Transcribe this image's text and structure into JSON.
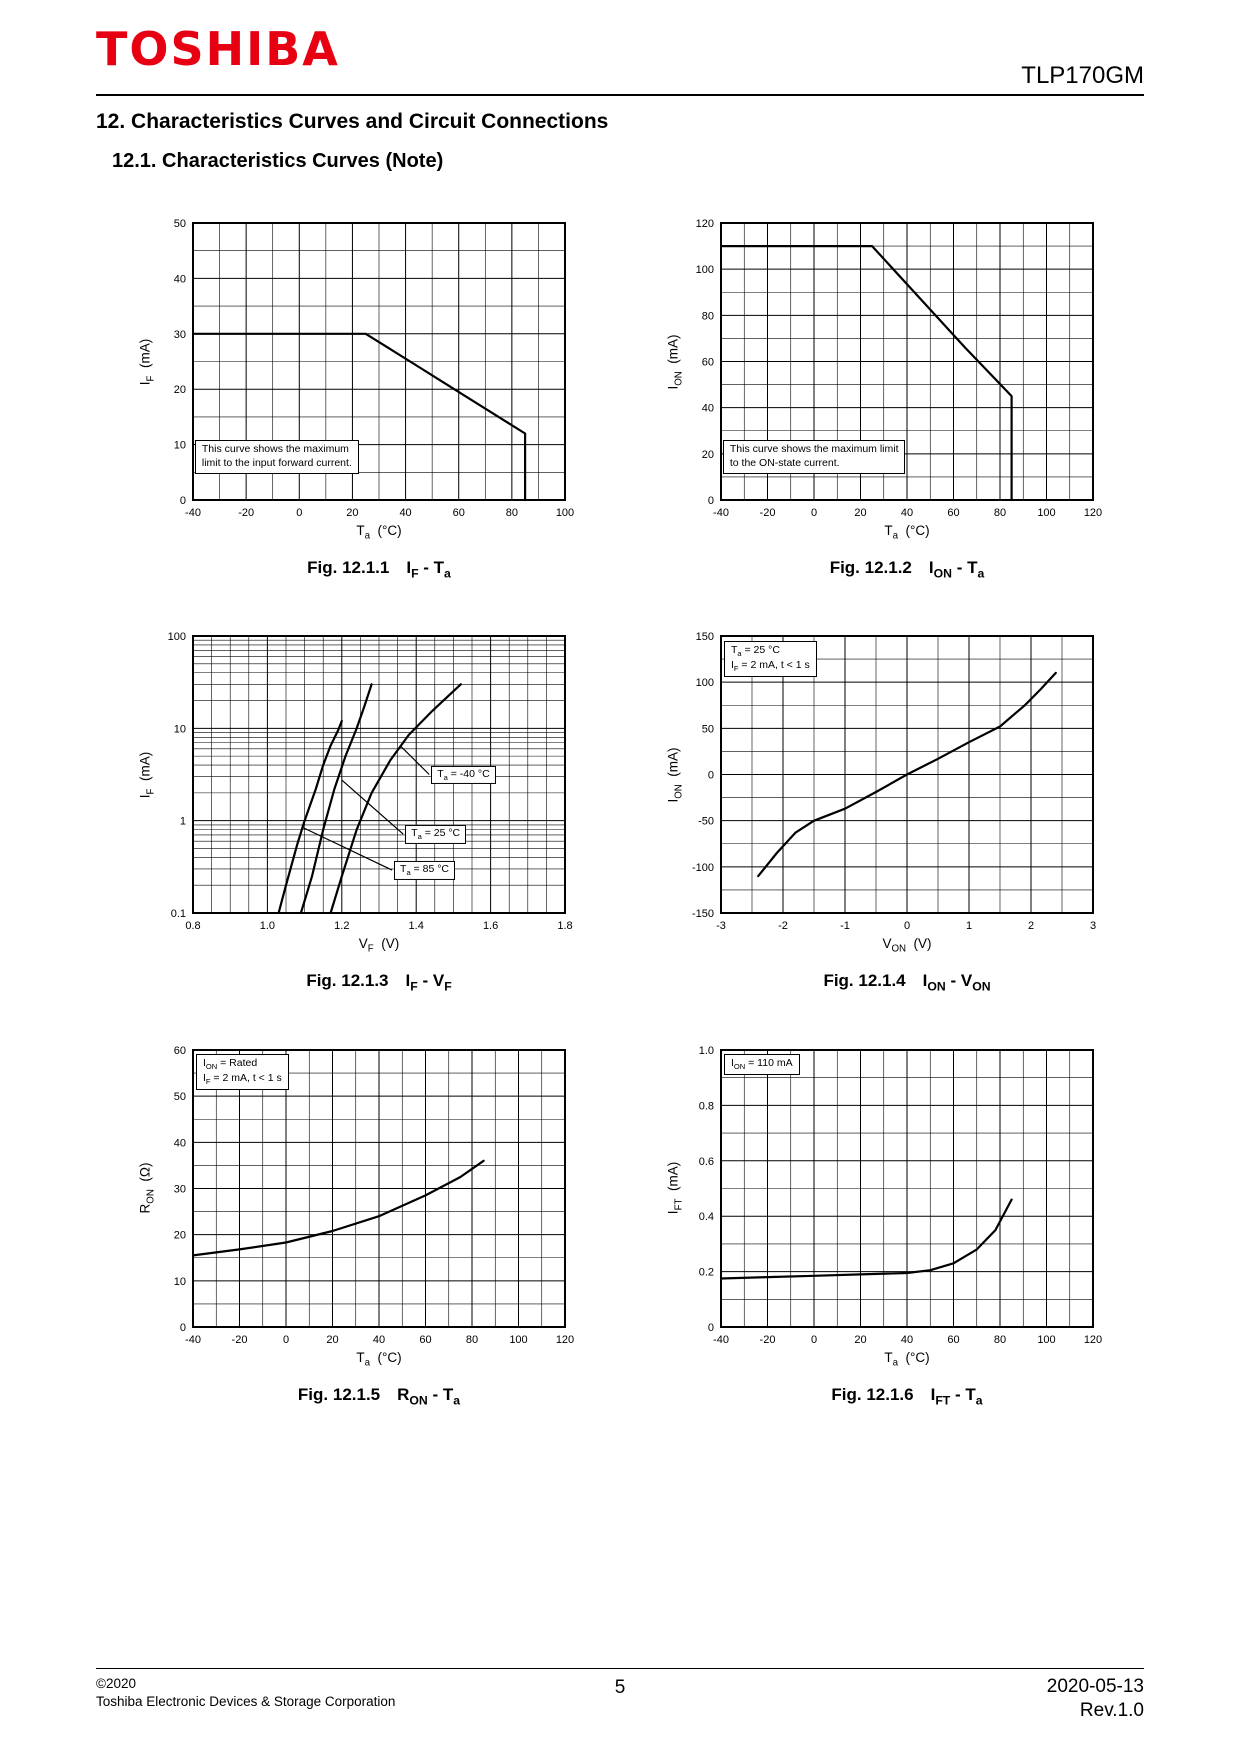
{
  "header": {
    "logo": "TOSHIBA",
    "part_number": "TLP170GM"
  },
  "section": {
    "title": "12. Characteristics Curves and Circuit Connections",
    "subtitle": "12.1. Characteristics Curves (Note)"
  },
  "footer": {
    "copyright": "©2020",
    "company": "Toshiba Electronic Devices & Storage Corporation",
    "page_number": "5",
    "date": "2020-05-13",
    "revision": "Rev.1.0"
  },
  "colors": {
    "logo_red": "#e60012",
    "curve_black": "#000000"
  },
  "chart_data": [
    {
      "id": "fig-12-1-1",
      "type": "line",
      "caption": "Fig. 12.1.1 I_{F} - T_{a}",
      "x_axis": {
        "label": "T_{a}  (°C)",
        "min": -40,
        "max": 100,
        "major": 20,
        "minor": 10,
        "scale": "linear"
      },
      "y_axis": {
        "label": "I_{F}  (mA)",
        "min": 0,
        "max": 50,
        "major": 10,
        "minor": 5,
        "scale": "linear"
      },
      "series": [
        {
          "name": "maximum input forward current limit",
          "points": [
            [
              -40,
              30
            ],
            [
              25,
              30
            ],
            [
              45,
              24
            ],
            [
              65,
              18
            ],
            [
              85,
              12
            ],
            [
              85,
              0
            ]
          ]
        }
      ],
      "annotations": [
        {
          "lines": [
            "This curve shows the maximum",
            "limit to the input forward current."
          ],
          "fx": 0.005,
          "fy": 0.785,
          "boxed": true
        }
      ],
      "curve_labels": []
    },
    {
      "id": "fig-12-1-2",
      "type": "line",
      "caption": "Fig. 12.1.2 I_{ON} - T_{a}",
      "x_axis": {
        "label": "T_{a}  (°C)",
        "min": -40,
        "max": 120,
        "major": 20,
        "minor": 10,
        "scale": "linear"
      },
      "y_axis": {
        "label": "I_{ON}  (mA)",
        "min": 0,
        "max": 120,
        "major": 20,
        "minor": 10,
        "scale": "linear"
      },
      "series": [
        {
          "name": "maximum ON-state current limit",
          "points": [
            [
              -40,
              110
            ],
            [
              25,
              110
            ],
            [
              45,
              88
            ],
            [
              65,
              66
            ],
            [
              85,
              45
            ],
            [
              85,
              0
            ]
          ]
        }
      ],
      "annotations": [
        {
          "lines": [
            "This curve shows the maximum limit",
            "to the ON-state current."
          ],
          "fx": 0.005,
          "fy": 0.785,
          "boxed": true
        }
      ],
      "curve_labels": []
    },
    {
      "id": "fig-12-1-3",
      "type": "line",
      "caption": "Fig. 12.1.3 I_{F} - V_{F}",
      "x_axis": {
        "label": "V_{F}  (V)",
        "min": 0.8,
        "max": 1.8,
        "major": 0.2,
        "minor": 0.05,
        "decimals": 1,
        "scale": "linear"
      },
      "y_axis": {
        "label": "I_{F}  (mA)",
        "min": 0.1,
        "max": 100,
        "scale": "log"
      },
      "series": [
        {
          "name": "T_{a} = 85 °C",
          "points": [
            [
              1.03,
              0.1
            ],
            [
              1.05,
              0.2
            ],
            [
              1.08,
              0.55
            ],
            [
              1.1,
              1.0
            ],
            [
              1.13,
              2.2
            ],
            [
              1.15,
              4
            ],
            [
              1.17,
              6.5
            ],
            [
              1.19,
              9.5
            ],
            [
              1.2,
              12
            ]
          ]
        },
        {
          "name": "T_{a} = 25 °C",
          "points": [
            [
              1.09,
              0.1
            ],
            [
              1.12,
              0.25
            ],
            [
              1.15,
              0.8
            ],
            [
              1.18,
              2.2
            ],
            [
              1.21,
              5
            ],
            [
              1.24,
              10
            ],
            [
              1.26,
              17
            ],
            [
              1.28,
              30
            ]
          ]
        },
        {
          "name": "T_{a} = -40 °C",
          "points": [
            [
              1.17,
              0.1
            ],
            [
              1.2,
              0.25
            ],
            [
              1.24,
              0.8
            ],
            [
              1.28,
              2
            ],
            [
              1.33,
              4.5
            ],
            [
              1.38,
              8.5
            ],
            [
              1.44,
              15
            ],
            [
              1.52,
              30
            ]
          ]
        }
      ],
      "annotations": [],
      "curve_labels": [
        {
          "text": "T_{a} = -40 °C",
          "fx": 0.635,
          "fy": 0.5,
          "tx": 0.56,
          "ty": 0.4
        },
        {
          "text": "T_{a} = 25 °C",
          "fx": 0.565,
          "fy": 0.715,
          "tx": 0.4,
          "ty": 0.52
        },
        {
          "text": "T_{a} = 85 °C",
          "fx": 0.535,
          "fy": 0.845,
          "tx": 0.293,
          "ty": 0.69
        }
      ]
    },
    {
      "id": "fig-12-1-4",
      "type": "line",
      "caption": "Fig. 12.1.4 I_{ON} - V_{ON}",
      "x_axis": {
        "label": "V_{ON}  (V)",
        "min": -3,
        "max": 3,
        "major": 1,
        "minor": 0.5,
        "scale": "linear"
      },
      "y_axis": {
        "label": "I_{ON}  (mA)",
        "min": -150,
        "max": 150,
        "major": 50,
        "minor": 25,
        "scale": "linear"
      },
      "series": [
        {
          "name": "ON-state current vs ON-state voltage",
          "points": [
            [
              -2.4,
              -110
            ],
            [
              -2.1,
              -85
            ],
            [
              -1.8,
              -63
            ],
            [
              -1.5,
              -50
            ],
            [
              -1.0,
              -37
            ],
            [
              -0.5,
              -19
            ],
            [
              0,
              0
            ],
            [
              0.5,
              17
            ],
            [
              1.0,
              35
            ],
            [
              1.5,
              52
            ],
            [
              1.9,
              75
            ],
            [
              2.15,
              92
            ],
            [
              2.4,
              110
            ]
          ]
        }
      ],
      "annotations": [
        {
          "lines": [
            "T_{a} = 25 °C",
            "I_{F} = 2 mA, t < 1 s"
          ],
          "fx": 0.008,
          "fy": 0.015,
          "boxed": true
        }
      ],
      "curve_labels": []
    },
    {
      "id": "fig-12-1-5",
      "type": "line",
      "caption": "Fig. 12.1.5 R_{ON} - T_{a}",
      "x_axis": {
        "label": "T_{a}  (°C)",
        "min": -40,
        "max": 120,
        "major": 20,
        "minor": 10,
        "scale": "linear"
      },
      "y_axis": {
        "label": "R_{ON}  (Ω)",
        "min": 0,
        "max": 60,
        "major": 10,
        "minor": 5,
        "scale": "linear"
      },
      "series": [
        {
          "name": "ON-state resistance vs ambient temperature",
          "points": [
            [
              -40,
              15.5
            ],
            [
              -20,
              16.8
            ],
            [
              0,
              18.3
            ],
            [
              20,
              20.8
            ],
            [
              40,
              24
            ],
            [
              60,
              28.5
            ],
            [
              75,
              32.5
            ],
            [
              85,
              36
            ]
          ]
        }
      ],
      "annotations": [
        {
          "lines": [
            "I_{ON} = Rated",
            "I_{F} = 2 mA, t < 1 s"
          ],
          "fx": 0.008,
          "fy": 0.015,
          "boxed": true
        }
      ],
      "curve_labels": []
    },
    {
      "id": "fig-12-1-6",
      "type": "line",
      "caption": "Fig. 12.1.6 I_{FT} - T_{a}",
      "x_axis": {
        "label": "T_{a}  (°C)",
        "min": -40,
        "max": 120,
        "major": 20,
        "minor": 10,
        "scale": "linear"
      },
      "y_axis": {
        "label": "I_{FT}  (mA)",
        "min": 0,
        "max": 1.0,
        "major": 0.2,
        "minor": 0.1,
        "decimals": 1,
        "scale": "linear"
      },
      "series": [
        {
          "name": "threshold input current vs ambient temperature",
          "points": [
            [
              -40,
              0.175
            ],
            [
              -20,
              0.18
            ],
            [
              0,
              0.185
            ],
            [
              20,
              0.19
            ],
            [
              40,
              0.195
            ],
            [
              50,
              0.205
            ],
            [
              60,
              0.23
            ],
            [
              70,
              0.28
            ],
            [
              78,
              0.35
            ],
            [
              85,
              0.46
            ]
          ]
        }
      ],
      "annotations": [
        {
          "lines": [
            "I_{ON} = 110 mA"
          ],
          "fx": 0.008,
          "fy": 0.015,
          "boxed": true
        }
      ],
      "curve_labels": []
    }
  ]
}
